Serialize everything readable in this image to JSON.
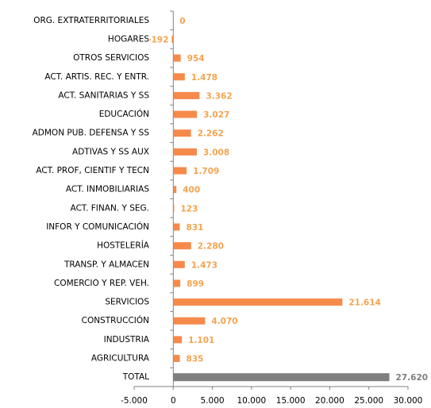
{
  "chart_data": {
    "type": "barh",
    "categories": [
      "ORG. EXTRATERRITORIALES",
      "HOGARES",
      "OTROS SERVICIOS",
      "ACT. ARTIS. REC. Y ENTR.",
      "ACT. SANITARIAS Y SS",
      "EDUCACIÓN",
      "ADMON PUB. DEFENSA Y SS",
      "ADTIVAS Y SS AUX",
      "ACT. PROF, CIENTIF Y TECN",
      "ACT. INMOBILIARIAS",
      "ACT. FINAN. Y SEG.",
      "INFOR Y COMUNICACIÓN",
      "HOSTELERÍA",
      "TRANSP. Y ALMACEN",
      "COMERCIO Y REP. VEH.",
      "SERVICIOS",
      "CONSTRUCCIÓN",
      "INDUSTRIA",
      "AGRICULTURA",
      "TOTAL"
    ],
    "values": [
      0,
      -192,
      954,
      1478,
      3362,
      3027,
      2262,
      3008,
      1709,
      400,
      123,
      831,
      2280,
      1473,
      899,
      21614,
      4070,
      1101,
      835,
      27620
    ],
    "value_labels": [
      "0",
      "-192",
      "954",
      "1.478",
      "3.362",
      "3.027",
      "2.262",
      "3.008",
      "1.709",
      "400",
      "123",
      "831",
      "2.280",
      "1.473",
      "899",
      "21.614",
      "4.070",
      "1.101",
      "835",
      "27.620"
    ],
    "colors": [
      "#f58a4b",
      "#f58a4b",
      "#f58a4b",
      "#f58a4b",
      "#f58a4b",
      "#f58a4b",
      "#f58a4b",
      "#f58a4b",
      "#f58a4b",
      "#f58a4b",
      "#f58a4b",
      "#f58a4b",
      "#f58a4b",
      "#f58a4b",
      "#f58a4b",
      "#f58a4b",
      "#f58a4b",
      "#f58a4b",
      "#f58a4b",
      "#7f7f7f"
    ],
    "label_colors": [
      "#f5a34f",
      "#f5a34f",
      "#f5a34f",
      "#f5a34f",
      "#f5a34f",
      "#f5a34f",
      "#f5a34f",
      "#f5a34f",
      "#f5a34f",
      "#f5a34f",
      "#f5a34f",
      "#f5a34f",
      "#f5a34f",
      "#f5a34f",
      "#f5a34f",
      "#f5a34f",
      "#f5a34f",
      "#f5a34f",
      "#f5a34f",
      "#7f7f7f"
    ],
    "xlim": [
      -5000,
      30000
    ],
    "xticks": [
      {
        "value": -5000,
        "label": "-5.000"
      },
      0,
      {
        "value": 5000,
        "label": "5.000"
      },
      {
        "value": 10000,
        "label": "10.000"
      },
      {
        "value": 15000,
        "label": "15.000"
      },
      {
        "value": 20000,
        "label": "20.000"
      },
      {
        "value": 25000,
        "label": "25.000"
      },
      {
        "value": 30000,
        "label": "30.000"
      }
    ]
  }
}
